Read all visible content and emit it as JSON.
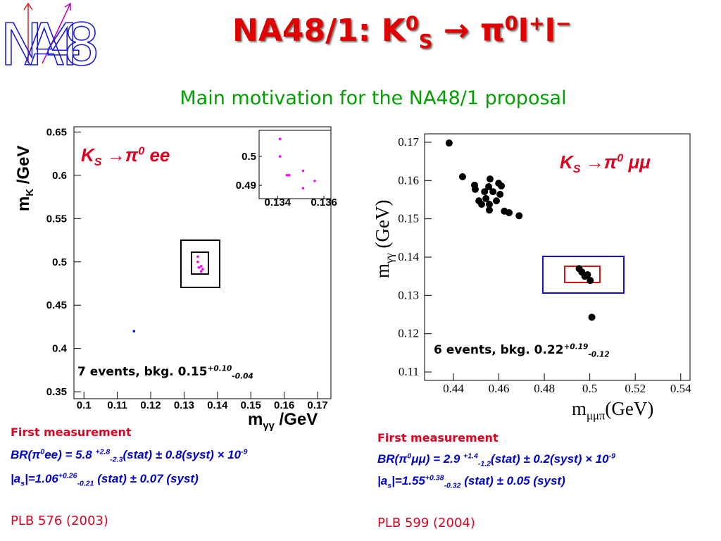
{
  "logo": "NA48",
  "title": [
    "NA48/1: K",
    {
      "sup": "0"
    },
    {
      "sub": "S"
    },
    " → π",
    {
      "sup": "0"
    },
    "l",
    {
      "sup": "+"
    },
    "l",
    {
      "sup": "−"
    }
  ],
  "subtitle": "Main motivation for the NA48/1 proposal",
  "chart_data": [
    {
      "type": "scatter",
      "xlim": [
        0.097,
        0.174
      ],
      "ylim": [
        0.342,
        0.656
      ],
      "xticks": [
        0.1,
        0.11,
        0.12,
        0.13,
        0.14,
        0.15,
        0.16,
        0.17
      ],
      "yticks": [
        0.35,
        0.4,
        0.45,
        0.5,
        0.55,
        0.6,
        0.65
      ],
      "xlabel": [
        "m",
        {
          "sub": "γγ"
        },
        " /GeV"
      ],
      "ylabel": [
        "m",
        {
          "sub": "K"
        },
        " /GeV"
      ],
      "annotation": [
        "K",
        {
          "sub": "S"
        },
        " →π",
        {
          "sup": "0"
        },
        " ee"
      ],
      "events": [
        "7 events, bkg. 0.15",
        {
          "sup": "+0.10"
        },
        {
          "sub": "-0.04"
        }
      ],
      "series": [
        {
          "color": "#ff00ff",
          "x": [
            0.1341,
            0.1341,
            0.1344,
            0.1345,
            0.1351,
            0.1351,
            0.1356
          ],
          "values": [
            0.506,
            0.5,
            0.4935,
            0.4935,
            0.495,
            0.489,
            0.4915
          ]
        },
        {
          "color": "#0000ff",
          "x": [
            0.115
          ],
          "values": [
            0.42
          ]
        }
      ],
      "inset": {
        "xlim": [
          0.1332,
          0.1363
        ],
        "ylim": [
          0.4854,
          0.509
        ],
        "xticks": [
          0.134,
          0.136
        ],
        "yticks": [
          0.49,
          0.5
        ]
      }
    },
    {
      "type": "scatter",
      "xlim": [
        0.4273,
        0.5441
      ],
      "ylim": [
        0.1078,
        0.1722
      ],
      "xticks": [
        0.44,
        0.46,
        0.48,
        0.5,
        0.52,
        0.54
      ],
      "yticks": [
        0.11,
        0.12,
        0.13,
        0.14,
        0.15,
        0.16,
        0.17
      ],
      "xlabel": [
        "m",
        {
          "sub": "μμπ"
        },
        "(GeV)"
      ],
      "ylabel": [
        "m",
        {
          "sub": "γγ"
        },
        "   (GeV)"
      ],
      "annotation": [
        "K",
        {
          "sub": "S"
        },
        " →π",
        {
          "sup": "0"
        },
        " μμ"
      ],
      "events": [
        "6 events, bkg. 0.22",
        {
          "sup": "+0.19"
        },
        {
          "sub": "-0.12"
        }
      ],
      "series": [
        {
          "color": "#000000",
          "x": [
            0.4381,
            0.444,
            0.4493,
            0.4496,
            0.4561,
            0.4599,
            0.4555,
            0.4611,
            0.4574,
            0.4537,
            0.4512,
            0.4543,
            0.4558,
            0.4558,
            0.4589,
            0.4605,
            0.4624,
            0.4645,
            0.4689,
            0.4524,
            0.4953,
            0.4965,
            0.4978,
            0.499,
            0.5002,
            0.5009
          ],
          "values": [
            0.1698,
            0.161,
            0.1588,
            0.1577,
            0.1604,
            0.1593,
            0.1584,
            0.1586,
            0.1571,
            0.1571,
            0.1547,
            0.1553,
            0.1538,
            0.1523,
            0.1547,
            0.1564,
            0.152,
            0.1516,
            0.1508,
            0.1538,
            0.137,
            0.1361,
            0.135,
            0.1354,
            0.1339,
            0.1243
          ]
        }
      ]
    }
  ],
  "results": [
    {
      "heading": "First measurement",
      "br": [
        "BR(π",
        {
          "sup": "0"
        },
        "ee) = 5.8 ",
        {
          "sup": "+2.8"
        },
        {
          "sub": "-2.3"
        },
        "(stat) ±  0.8(syst) × 10",
        {
          "sup": "-9"
        }
      ],
      "as": [
        "|a",
        {
          "sub": "s"
        },
        "|=1.06",
        {
          "sup": "+0.26"
        },
        {
          "sub": "-0.21"
        },
        " (stat) ± 0.07 (syst)"
      ],
      "ref": "PLB 576 (2003)"
    },
    {
      "heading": "First measurement",
      "br": [
        "BR(π",
        {
          "sup": "0"
        },
        "μμ) = 2.9 ",
        {
          "sup": "+1.4"
        },
        {
          "sub": "-1.2"
        },
        "(stat) ±  0.2(syst) × 10",
        {
          "sup": "-9"
        }
      ],
      "as": [
        "|a",
        {
          "sub": "s"
        },
        "|=1.55",
        {
          "sup": "+0.38"
        },
        {
          "sub": "-0.32"
        },
        " (stat) ± 0.05 (syst)"
      ],
      "ref": "PLB 599 (2004)"
    }
  ]
}
